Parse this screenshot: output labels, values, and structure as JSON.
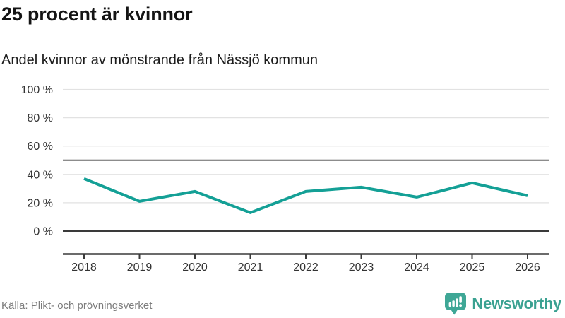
{
  "header": {
    "title": "25 procent är kvinnor",
    "subtitle": "Andel kvinnor av mönstrande från Nässjö kommun"
  },
  "chart_data": {
    "type": "line",
    "title": "25 procent är kvinnor",
    "subtitle": "Andel kvinnor av mönstrande från Nässjö kommun",
    "categories": [
      "2018",
      "2019",
      "2020",
      "2021",
      "2022",
      "2023",
      "2024",
      "2025",
      "2026"
    ],
    "series": [
      {
        "name": "Andel kvinnor av mönstrande från Nässjö kommun",
        "values": [
          37,
          21,
          28,
          13,
          28,
          31,
          24,
          34,
          25
        ]
      }
    ],
    "unit": "%",
    "ylim": [
      0,
      100
    ],
    "yticks": [
      0,
      20,
      40,
      60,
      80,
      100
    ],
    "ytick_suffix": " %",
    "reference_line": 50,
    "grid": true,
    "legend": "none",
    "line_color": "#14a096"
  },
  "footer": {
    "source": "Källa: Plikt- och prövningsverket",
    "brand": "Newsworthy"
  },
  "colors": {
    "line": "#14a096",
    "grid": "#e2e2e2",
    "reference_line": "#666666",
    "axis": "#3a3a3a",
    "tick_label": "#333333",
    "title_text": "#141414",
    "source_text": "#7c7c7c",
    "brand_teal": "#3aa191",
    "brand_icon_teal": "#3fa796"
  }
}
